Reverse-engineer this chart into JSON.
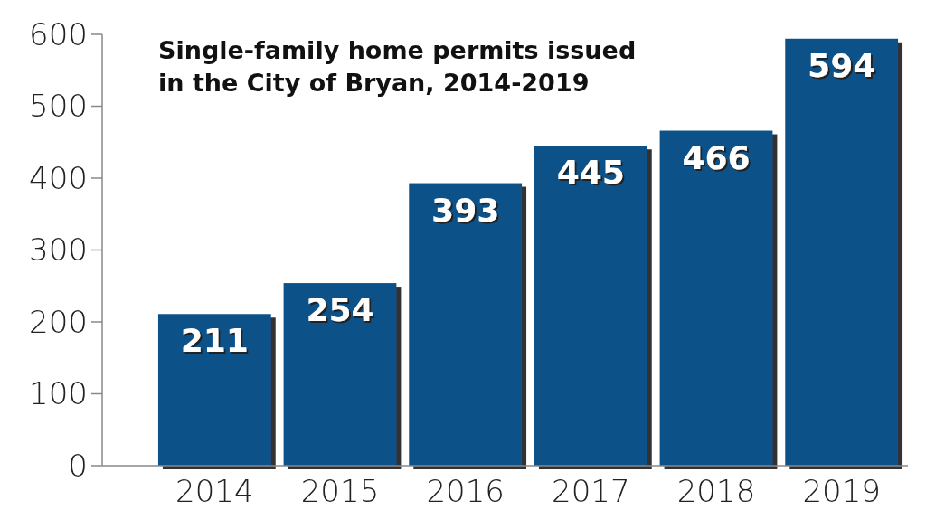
{
  "chart_data": {
    "type": "bar",
    "title": "Single-family home permits issued in the City of Bryan, 2014-2019",
    "categories": [
      "2014",
      "2015",
      "2016",
      "2017",
      "2018",
      "2019"
    ],
    "values": [
      211,
      254,
      393,
      445,
      466,
      594
    ],
    "color": "#0b5189",
    "ylim": [
      0,
      600
    ],
    "yticks": [
      0,
      100,
      200,
      300,
      400,
      500,
      600
    ],
    "grid": false,
    "data_labels": true
  }
}
